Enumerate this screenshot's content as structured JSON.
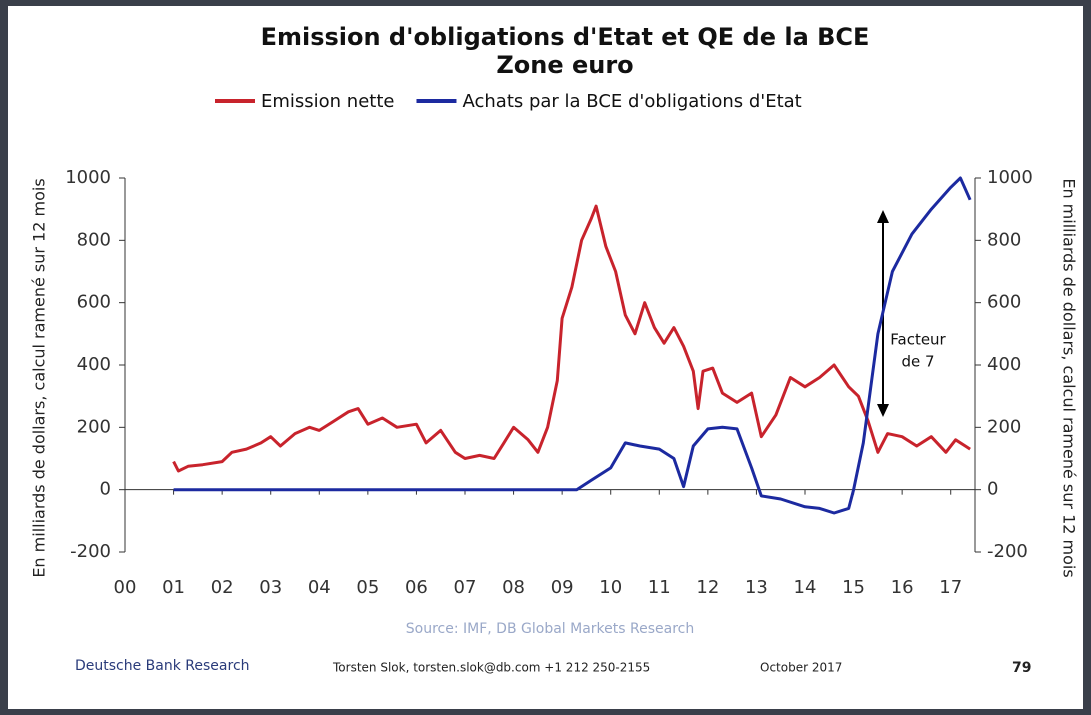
{
  "chart_data": {
    "type": "line",
    "title": "Emission d'obligations d'Etat et QE de la BCE",
    "subtitle": "Zone euro",
    "ylabel": "En milliards de dollars, calcul ramené sur 12 mois",
    "y2label": "En milliards de dollars, calcul ramené sur 12 mois",
    "annotation": [
      "Facteur",
      "de 7"
    ],
    "source": "Source: IMF, DB Global Markets Research",
    "footer": {
      "left": "Deutsche Bank Research",
      "author": "Torsten Slok, torsten.slok@db.com +1 212 250-2155",
      "date": "October 2017",
      "page": "79"
    },
    "xlim": [
      0,
      17.5
    ],
    "xticks": [
      {
        "value": 0,
        "label": "00"
      },
      {
        "value": 1,
        "label": "01"
      },
      {
        "value": 2,
        "label": "02"
      },
      {
        "value": 3,
        "label": "03"
      },
      {
        "value": 4,
        "label": "04"
      },
      {
        "value": 5,
        "label": "05"
      },
      {
        "value": 6,
        "label": "06"
      },
      {
        "value": 7,
        "label": "07"
      },
      {
        "value": 8,
        "label": "08"
      },
      {
        "value": 9,
        "label": "09"
      },
      {
        "value": 10,
        "label": "10"
      },
      {
        "value": 11,
        "label": "11"
      },
      {
        "value": 12,
        "label": "12"
      },
      {
        "value": 13,
        "label": "13"
      },
      {
        "value": 14,
        "label": "14"
      },
      {
        "value": 15,
        "label": "15"
      },
      {
        "value": 16,
        "label": "16"
      },
      {
        "value": 17,
        "label": "17"
      }
    ],
    "ylim": [
      -200,
      1000
    ],
    "yticks": [
      -200,
      0,
      200,
      400,
      600,
      800,
      1000
    ],
    "y2lim": [
      -200,
      1000
    ],
    "y2ticks": [
      -200,
      0,
      200,
      400,
      600,
      800,
      1000
    ],
    "series": [
      {
        "name": "Emission nette",
        "color": "#c8232c",
        "x": [
          1.0,
          1.1,
          1.3,
          1.6,
          2.0,
          2.2,
          2.5,
          2.8,
          3.0,
          3.2,
          3.5,
          3.8,
          4.0,
          4.3,
          4.6,
          4.8,
          5.0,
          5.3,
          5.6,
          6.0,
          6.2,
          6.5,
          6.8,
          7.0,
          7.3,
          7.6,
          7.8,
          8.0,
          8.3,
          8.5,
          8.7,
          8.9,
          9.0,
          9.2,
          9.4,
          9.6,
          9.7,
          9.9,
          10.1,
          10.3,
          10.5,
          10.7,
          10.9,
          11.1,
          11.3,
          11.5,
          11.7,
          11.8,
          11.9,
          12.1,
          12.3,
          12.6,
          12.9,
          13.1,
          13.4,
          13.7,
          14.0,
          14.3,
          14.6,
          14.9,
          15.1,
          15.3,
          15.5,
          15.7,
          16.0,
          16.3,
          16.6,
          16.9,
          17.1,
          17.3,
          17.4
        ],
        "values": [
          90,
          60,
          75,
          80,
          90,
          120,
          130,
          150,
          170,
          140,
          180,
          200,
          190,
          220,
          250,
          260,
          210,
          230,
          200,
          210,
          150,
          190,
          120,
          100,
          110,
          100,
          150,
          200,
          160,
          120,
          200,
          350,
          550,
          650,
          800,
          870,
          910,
          780,
          700,
          560,
          500,
          600,
          520,
          470,
          520,
          460,
          380,
          260,
          380,
          390,
          310,
          280,
          310,
          170,
          240,
          360,
          330,
          360,
          400,
          330,
          300,
          220,
          120,
          180,
          170,
          140,
          170,
          120,
          160,
          140,
          130
        ]
      },
      {
        "name": "Achats par la BCE d'obligations d'Etat",
        "color": "#1c2aa0",
        "axis": "y2",
        "x": [
          1.0,
          9.3,
          9.6,
          10.0,
          10.3,
          10.6,
          11.0,
          11.3,
          11.5,
          11.7,
          12.0,
          12.3,
          12.6,
          12.9,
          13.1,
          13.5,
          14.0,
          14.3,
          14.6,
          14.9,
          15.0,
          15.2,
          15.5,
          15.8,
          16.2,
          16.6,
          17.0,
          17.2,
          17.4
        ],
        "values": [
          0,
          0,
          30,
          70,
          150,
          140,
          130,
          100,
          10,
          140,
          195,
          200,
          195,
          70,
          -20,
          -30,
          -55,
          -60,
          -75,
          -60,
          0,
          150,
          500,
          700,
          820,
          900,
          970,
          1000,
          930
        ]
      }
    ]
  }
}
